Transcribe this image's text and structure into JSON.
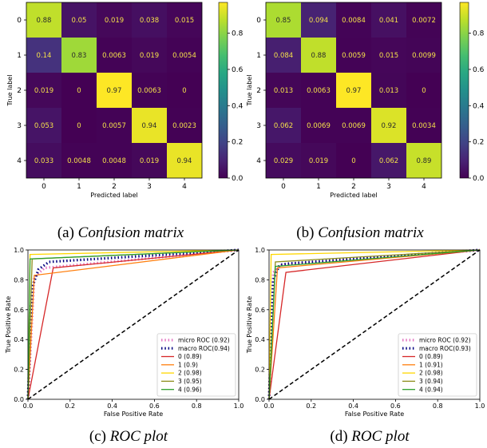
{
  "chart_data": [
    {
      "type": "heatmap",
      "caption_label": "(a)",
      "caption_title": "Confusion matrix",
      "xlabel": "Predicted label",
      "ylabel": "True label",
      "x_categories": [
        "0",
        "1",
        "2",
        "3",
        "4"
      ],
      "y_categories": [
        "0",
        "1",
        "2",
        "3",
        "4"
      ],
      "values": [
        [
          "0.88",
          "0.05",
          "0.019",
          "0.038",
          "0.015"
        ],
        [
          "0.14",
          "0.83",
          "0.0063",
          "0.019",
          "0.0054"
        ],
        [
          "0.019",
          "0",
          "0.97",
          "0.0063",
          "0"
        ],
        [
          "0.053",
          "0",
          "0.0057",
          "0.94",
          "0.0023"
        ],
        [
          "0.033",
          "0.0048",
          "0.0048",
          "0.019",
          "0.94"
        ]
      ],
      "colorbar_ticks": [
        "0.0",
        "0.2",
        "0.4",
        "0.6",
        "0.8"
      ],
      "colorbar_range": [
        0,
        0.97
      ],
      "colormap": "viridis"
    },
    {
      "type": "heatmap",
      "caption_label": "(b)",
      "caption_title": "Confusion matrix",
      "xlabel": "Predicted label",
      "ylabel": "True label",
      "x_categories": [
        "0",
        "1",
        "2",
        "3",
        "4"
      ],
      "y_categories": [
        "0",
        "1",
        "2",
        "3",
        "4"
      ],
      "values": [
        [
          "0.85",
          "0.094",
          "0.0084",
          "0.041",
          "0.0072"
        ],
        [
          "0.084",
          "0.88",
          "0.0059",
          "0.015",
          "0.0099"
        ],
        [
          "0.013",
          "0.0063",
          "0.97",
          "0.013",
          "0"
        ],
        [
          "0.062",
          "0.0069",
          "0.0069",
          "0.92",
          "0.0034"
        ],
        [
          "0.029",
          "0.019",
          "0",
          "0.062",
          "0.89"
        ]
      ],
      "colorbar_ticks": [
        "0.0",
        "0.2",
        "0.4",
        "0.6",
        "0.8"
      ],
      "colorbar_range": [
        0,
        0.97
      ],
      "colormap": "viridis"
    },
    {
      "type": "line",
      "caption_label": "(c)",
      "caption_title": "ROC plot",
      "xlabel": "False Positive Rate",
      "ylabel": "True Positive Rate",
      "xlim": [
        0,
        1
      ],
      "ylim": [
        0,
        1
      ],
      "x_ticks": [
        "0.0",
        "0.2",
        "0.4",
        "0.6",
        "0.8",
        "1.0"
      ],
      "y_ticks": [
        "0.0",
        "0.2",
        "0.4",
        "0.6",
        "0.8",
        "1.0"
      ],
      "legend_position": "bottom-right",
      "series": [
        {
          "name": "micro ROC (0.92)",
          "color": "#e377c2",
          "style": "dotted",
          "points": [
            [
              0,
              0
            ],
            [
              0.03,
              0.82
            ],
            [
              0.08,
              0.88
            ],
            [
              1,
              1
            ]
          ]
        },
        {
          "name": "macro ROC(0.94)",
          "color": "#000080",
          "style": "dotted",
          "points": [
            [
              0,
              0
            ],
            [
              0.02,
              0.75
            ],
            [
              0.05,
              0.87
            ],
            [
              0.1,
              0.92
            ],
            [
              1,
              1
            ]
          ]
        },
        {
          "name": "0 (0.89)",
          "color": "#d62728",
          "style": "solid",
          "points": [
            [
              0,
              0
            ],
            [
              0.12,
              0.88
            ],
            [
              1,
              1
            ]
          ]
        },
        {
          "name": "1 (0.9)",
          "color": "#ff7f0e",
          "style": "solid",
          "points": [
            [
              0,
              0
            ],
            [
              0.03,
              0.83
            ],
            [
              1,
              1
            ]
          ]
        },
        {
          "name": "2 (0.98)",
          "color": "#ffd700",
          "style": "solid",
          "points": [
            [
              0,
              0
            ],
            [
              0.01,
              0.97
            ],
            [
              1,
              1
            ]
          ]
        },
        {
          "name": "3 (0.95)",
          "color": "#8c8c1a",
          "style": "solid",
          "points": [
            [
              0,
              0
            ],
            [
              0.02,
              0.94
            ],
            [
              1,
              1
            ]
          ]
        },
        {
          "name": "4 (0.96)",
          "color": "#2ca02c",
          "style": "solid",
          "points": [
            [
              0,
              0
            ],
            [
              0.01,
              0.94
            ],
            [
              1,
              1
            ]
          ]
        },
        {
          "name": "",
          "color": "#000000",
          "style": "dashed",
          "points": [
            [
              0,
              0
            ],
            [
              1,
              1
            ]
          ]
        }
      ]
    },
    {
      "type": "line",
      "caption_label": "(d)",
      "caption_title": "ROC plot",
      "xlabel": "False Positive Rate",
      "ylabel": "True Positive Rate",
      "xlim": [
        0,
        1
      ],
      "ylim": [
        0,
        1
      ],
      "x_ticks": [
        "0.0",
        "0.2",
        "0.4",
        "0.6",
        "0.8",
        "1.0"
      ],
      "y_ticks": [
        "0.0",
        "0.2",
        "0.4",
        "0.6",
        "0.8",
        "1.0"
      ],
      "legend_position": "bottom-right",
      "series": [
        {
          "name": "micro ROC (0.92)",
          "color": "#e377c2",
          "style": "dotted",
          "points": [
            [
              0,
              0
            ],
            [
              0.02,
              0.85
            ],
            [
              0.06,
              0.9
            ],
            [
              1,
              1
            ]
          ]
        },
        {
          "name": "macro ROC(0.93)",
          "color": "#000080",
          "style": "dotted",
          "points": [
            [
              0,
              0
            ],
            [
              0.02,
              0.8
            ],
            [
              0.05,
              0.9
            ],
            [
              0.1,
              0.91
            ],
            [
              1,
              1
            ]
          ]
        },
        {
          "name": "0 (0.89)",
          "color": "#d62728",
          "style": "solid",
          "points": [
            [
              0,
              0
            ],
            [
              0.08,
              0.85
            ],
            [
              1,
              1
            ]
          ]
        },
        {
          "name": "1 (0.91)",
          "color": "#ff7f0e",
          "style": "solid",
          "points": [
            [
              0,
              0
            ],
            [
              0.04,
              0.88
            ],
            [
              1,
              1
            ]
          ]
        },
        {
          "name": "2 (0.98)",
          "color": "#ffd700",
          "style": "solid",
          "points": [
            [
              0,
              0
            ],
            [
              0.01,
              0.97
            ],
            [
              1,
              1
            ]
          ]
        },
        {
          "name": "3 (0.94)",
          "color": "#8c8c1a",
          "style": "solid",
          "points": [
            [
              0,
              0
            ],
            [
              0.03,
              0.92
            ],
            [
              1,
              1
            ]
          ]
        },
        {
          "name": "4 (0.94)",
          "color": "#2ca02c",
          "style": "solid",
          "points": [
            [
              0,
              0
            ],
            [
              0.03,
              0.89
            ],
            [
              1,
              1
            ]
          ]
        },
        {
          "name": "",
          "color": "#000000",
          "style": "dashed",
          "points": [
            [
              0,
              0
            ],
            [
              1,
              1
            ]
          ]
        }
      ]
    }
  ]
}
